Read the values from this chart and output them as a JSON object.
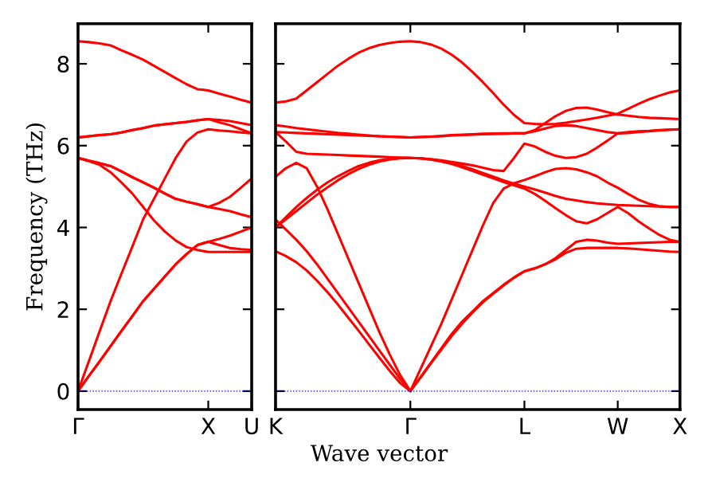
{
  "chart_data": [
    {
      "type": "line",
      "ylabel": "Frequency (THz)",
      "ylim": [
        -0.45,
        8.98
      ],
      "yticks": [
        0,
        2,
        4,
        6,
        8
      ],
      "categories": [
        "Γ",
        null,
        null,
        null,
        null,
        null,
        null,
        null,
        null,
        null,
        null,
        null,
        "X",
        null,
        null,
        null,
        "U"
      ],
      "ref_lines": [
        {
          "axis": "y",
          "value": 0,
          "label": null,
          "color": "#0000ff",
          "line_style": "dotted"
        }
      ],
      "grid": false,
      "legend": false,
      "marker": "none",
      "line_style": "solid",
      "series": [
        {
          "color": "#ff0000",
          "values": [
            0,
            0.37,
            0.73,
            1.1,
            1.47,
            1.83,
            2.2,
            2.5,
            2.8,
            3.1,
            3.35,
            3.57,
            3.65,
            3.72,
            3.8,
            3.9,
            4.0
          ]
        },
        {
          "color": "#ff0000",
          "values": [
            0,
            0.37,
            0.73,
            1.1,
            1.47,
            1.83,
            2.2,
            2.5,
            2.8,
            3.1,
            3.35,
            3.57,
            3.65,
            3.57,
            3.5,
            3.47,
            3.45
          ]
        },
        {
          "color": "#ff0000",
          "values": [
            0,
            0.73,
            1.47,
            2.2,
            2.87,
            3.53,
            4.2,
            4.7,
            5.2,
            5.7,
            6.1,
            6.32,
            6.4,
            6.37,
            6.35,
            6.32,
            6.3
          ]
        },
        {
          "color": "#ff0000",
          "values": [
            5.7,
            5.62,
            5.53,
            5.35,
            5.1,
            4.83,
            4.5,
            4.17,
            3.9,
            3.68,
            3.52,
            3.45,
            3.4,
            3.4,
            3.4,
            3.4,
            3.4
          ]
        },
        {
          "color": "#ff0000",
          "values": [
            5.7,
            5.63,
            5.57,
            5.5,
            5.37,
            5.23,
            5.1,
            4.97,
            4.83,
            4.7,
            4.63,
            4.57,
            4.5,
            4.6,
            4.75,
            4.97,
            5.2
          ]
        },
        {
          "color": "#ff0000",
          "values": [
            5.7,
            5.63,
            5.57,
            5.5,
            5.37,
            5.23,
            5.1,
            4.97,
            4.83,
            4.7,
            4.63,
            4.57,
            4.5,
            4.45,
            4.4,
            4.32,
            4.25
          ]
        },
        {
          "color": "#ff0000",
          "values": [
            6.2,
            6.23,
            6.26,
            6.28,
            6.32,
            6.38,
            6.43,
            6.49,
            6.52,
            6.55,
            6.58,
            6.62,
            6.65,
            6.63,
            6.6,
            6.55,
            6.5
          ]
        },
        {
          "color": "#ff0000",
          "values": [
            6.2,
            6.23,
            6.26,
            6.28,
            6.32,
            6.38,
            6.43,
            6.49,
            6.52,
            6.55,
            6.58,
            6.62,
            6.65,
            6.57,
            6.5,
            6.4,
            6.3
          ]
        },
        {
          "color": "#ff0000",
          "values": [
            8.55,
            8.53,
            8.5,
            8.45,
            8.33,
            8.22,
            8.1,
            7.95,
            7.8,
            7.65,
            7.5,
            7.38,
            7.35,
            7.27,
            7.2,
            7.12,
            7.05
          ]
        }
      ]
    },
    {
      "type": "line",
      "xlabel": "Wave vector",
      "ylim": [
        -0.45,
        8.98
      ],
      "yticks": [
        0,
        2,
        4,
        6,
        8
      ],
      "tick_labels": "x",
      "categories": [
        "K",
        null,
        null,
        null,
        null,
        null,
        null,
        null,
        null,
        null,
        null,
        null,
        null,
        "Γ",
        null,
        null,
        null,
        null,
        null,
        null,
        null,
        null,
        null,
        null,
        "L",
        null,
        null,
        null,
        null,
        null,
        null,
        null,
        null,
        "W",
        null,
        null,
        null,
        null,
        null,
        "X"
      ],
      "ref_lines": [
        {
          "axis": "y",
          "value": 0,
          "label": null,
          "color": "#0000ff",
          "line_style": "dotted"
        }
      ],
      "grid": false,
      "legend": false,
      "marker": "none",
      "line_style": "solid",
      "series": [
        {
          "color": "#ff0000",
          "values": [
            7.05,
            7.08,
            7.15,
            7.35,
            7.55,
            7.75,
            7.95,
            8.12,
            8.27,
            8.38,
            8.46,
            8.51,
            8.54,
            8.55,
            8.53,
            8.47,
            8.37,
            8.22,
            8.03,
            7.8,
            7.55,
            7.28,
            7.0,
            6.75,
            6.55,
            6.53,
            6.52,
            6.53,
            6.56,
            6.6,
            6.64,
            6.68,
            6.73,
            6.78,
            6.9,
            7.02,
            7.13,
            7.22,
            7.3,
            7.35
          ]
        },
        {
          "color": "#ff0000",
          "values": [
            6.5,
            6.47,
            6.43,
            6.4,
            6.37,
            6.34,
            6.31,
            6.29,
            6.27,
            6.25,
            6.23,
            6.22,
            6.21,
            6.2,
            6.21,
            6.22,
            6.24,
            6.26,
            6.27,
            6.28,
            6.29,
            6.29,
            6.3,
            6.3,
            6.3,
            6.38,
            6.55,
            6.72,
            6.85,
            6.92,
            6.93,
            6.88,
            6.82,
            6.76,
            6.73,
            6.7,
            6.68,
            6.67,
            6.66,
            6.65
          ]
        },
        {
          "color": "#ff0000",
          "values": [
            6.33,
            6.32,
            6.31,
            6.3,
            6.29,
            6.28,
            6.27,
            6.26,
            6.25,
            6.24,
            6.23,
            6.22,
            6.21,
            6.2,
            6.21,
            6.22,
            6.23,
            6.25,
            6.26,
            6.27,
            6.28,
            6.29,
            6.29,
            6.3,
            6.3,
            6.35,
            6.42,
            6.48,
            6.5,
            6.48,
            6.43,
            6.38,
            6.33,
            6.3,
            6.31,
            6.33,
            6.35,
            6.37,
            6.39,
            6.4
          ]
        },
        {
          "color": "#ff0000",
          "values": [
            6.33,
            6.1,
            5.85,
            5.8,
            5.79,
            5.78,
            5.77,
            5.76,
            5.75,
            5.74,
            5.73,
            5.72,
            5.71,
            5.7,
            5.69,
            5.67,
            5.64,
            5.6,
            5.56,
            5.52,
            5.46,
            5.4,
            5.38,
            5.7,
            6.05,
            5.98,
            5.85,
            5.75,
            5.7,
            5.72,
            5.8,
            5.95,
            6.12,
            6.3,
            6.33,
            6.35,
            6.36,
            6.38,
            6.39,
            6.4
          ]
        },
        {
          "color": "#ff0000",
          "values": [
            5.24,
            5.45,
            5.58,
            5.45,
            5.0,
            4.45,
            3.85,
            3.25,
            2.65,
            2.05,
            1.45,
            0.9,
            0.4,
            0,
            0.35,
            0.7,
            1.05,
            1.4,
            1.7,
            1.95,
            2.2,
            2.4,
            2.6,
            2.78,
            2.93,
            3.0,
            3.1,
            3.25,
            3.45,
            3.65,
            3.7,
            3.68,
            3.63,
            3.6,
            3.61,
            3.62,
            3.63,
            3.64,
            3.65,
            3.65
          ]
        },
        {
          "color": "#ff0000",
          "values": [
            4.19,
            3.95,
            3.7,
            3.42,
            3.1,
            2.75,
            2.4,
            2.05,
            1.7,
            1.35,
            1.0,
            0.65,
            0.3,
            0,
            0.33,
            0.68,
            1.02,
            1.35,
            1.65,
            1.92,
            2.17,
            2.38,
            2.58,
            2.77,
            2.93,
            3.0,
            3.1,
            3.22,
            3.38,
            3.48,
            3.5,
            3.5,
            3.5,
            3.5,
            3.49,
            3.47,
            3.45,
            3.43,
            3.41,
            3.4
          ]
        },
        {
          "color": "#ff0000",
          "values": [
            4.0,
            4.2,
            4.4,
            4.6,
            4.8,
            4.98,
            5.15,
            5.3,
            5.43,
            5.53,
            5.61,
            5.66,
            5.69,
            5.7,
            5.69,
            5.66,
            5.62,
            5.57,
            5.5,
            5.42,
            5.33,
            5.24,
            5.15,
            5.07,
            5.0,
            4.93,
            4.85,
            4.77,
            4.7,
            4.66,
            4.62,
            4.59,
            4.57,
            4.55,
            4.54,
            4.53,
            4.52,
            4.51,
            4.5,
            4.5
          ]
        },
        {
          "color": "#ff0000",
          "values": [
            4.0,
            4.25,
            4.5,
            4.72,
            4.92,
            5.1,
            5.25,
            5.38,
            5.5,
            5.58,
            5.64,
            5.68,
            5.7,
            5.7,
            5.69,
            5.66,
            5.61,
            5.55,
            5.47,
            5.38,
            5.29,
            5.2,
            5.11,
            5.03,
            4.95,
            4.82,
            4.65,
            4.47,
            4.3,
            4.15,
            4.1,
            4.2,
            4.35,
            4.5,
            4.35,
            4.15,
            3.98,
            3.82,
            3.7,
            3.65
          ]
        },
        {
          "color": "#ff0000",
          "values": [
            3.42,
            3.3,
            3.15,
            2.95,
            2.7,
            2.42,
            2.12,
            1.8,
            1.48,
            1.15,
            0.82,
            0.5,
            0.2,
            0,
            0.55,
            1.1,
            1.65,
            2.25,
            2.85,
            3.45,
            4.05,
            4.6,
            4.95,
            5.08,
            5.16,
            5.25,
            5.35,
            5.43,
            5.45,
            5.42,
            5.35,
            5.25,
            5.1,
            4.97,
            4.82,
            4.68,
            4.58,
            4.52,
            4.5,
            4.5
          ]
        }
      ]
    }
  ]
}
